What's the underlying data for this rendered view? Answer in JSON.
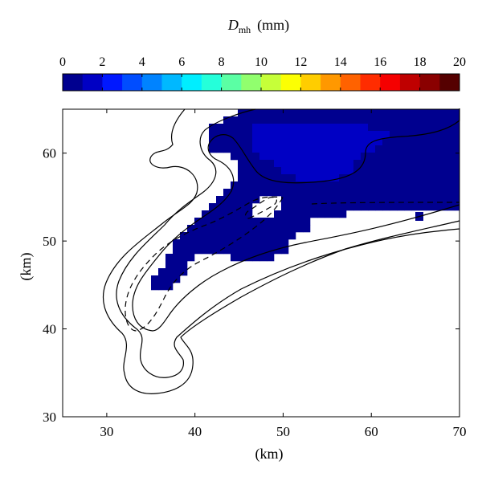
{
  "chart_data": {
    "type": "heatmap",
    "title": "D",
    "title_subscript": "mh",
    "title_units": "(mm)",
    "xlabel": "(km)",
    "ylabel": "(km)",
    "xlim": [
      25,
      70
    ],
    "ylim": [
      30,
      65
    ],
    "xticks": [
      "30",
      "40",
      "50",
      "60",
      "70"
    ],
    "yticks": [
      "30",
      "40",
      "50",
      "60"
    ],
    "grid": false,
    "colorbar": {
      "placement": "top",
      "range": [
        0,
        20
      ],
      "ticks": [
        "0",
        "2",
        "4",
        "6",
        "8",
        "10",
        "12",
        "14",
        "16",
        "18",
        "20"
      ],
      "colors": [
        "#00008f",
        "#0000c4",
        "#0018ff",
        "#004dff",
        "#0083ff",
        "#00b8ff",
        "#00eeff",
        "#25ffda",
        "#5bffa4",
        "#91ff6e",
        "#c6ff39",
        "#fcff03",
        "#ffcd00",
        "#ff9800",
        "#ff6200",
        "#ff2c00",
        "#f50000",
        "#bf0000",
        "#8a0000",
        "#550000"
      ]
    },
    "field": {
      "dominant_value_mm": "0-1",
      "dominant_color": "#00008f",
      "secondary_value_mm": "1-2",
      "secondary_color": "#0000c4",
      "description_regions": [
        {
          "x": [
            40,
            70
          ],
          "y": [
            44,
            65
          ],
          "value_range_mm": [
            0,
            1
          ]
        },
        {
          "x": [
            48,
            57
          ],
          "y": [
            57,
            63
          ],
          "value_range_mm": [
            1,
            2
          ]
        }
      ]
    },
    "contours": {
      "count": 3,
      "styles": [
        "solid",
        "solid",
        "dashed"
      ]
    }
  }
}
